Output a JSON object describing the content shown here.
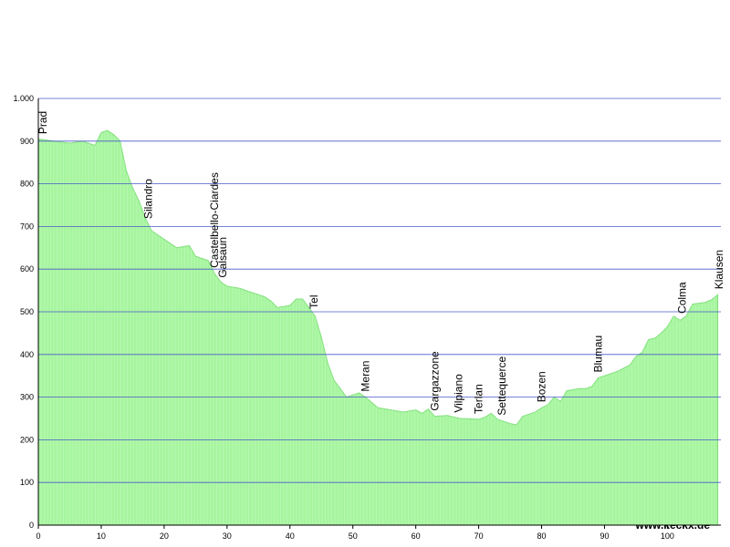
{
  "chart_data": {
    "type": "area",
    "x": [
      0,
      5,
      7,
      9,
      10,
      11,
      12,
      13,
      14,
      15,
      16,
      17,
      18,
      20,
      22,
      24,
      25,
      27,
      28,
      29,
      30,
      32,
      34,
      36,
      37,
      38,
      40,
      41,
      42,
      43,
      44,
      45,
      46,
      47,
      48,
      49,
      51,
      52,
      54,
      56,
      58,
      60,
      61,
      62,
      63,
      65,
      67,
      70,
      71,
      72,
      73,
      75,
      76,
      77,
      79,
      80,
      81,
      82,
      83,
      84,
      86,
      87,
      88,
      89,
      90,
      92,
      94,
      95,
      96,
      97,
      98,
      99,
      100,
      101,
      102,
      103,
      104,
      106,
      107,
      108
    ],
    "values": [
      905,
      895,
      900,
      890,
      920,
      925,
      915,
      900,
      830,
      790,
      760,
      720,
      690,
      670,
      650,
      655,
      630,
      620,
      590,
      570,
      560,
      555,
      545,
      535,
      525,
      510,
      515,
      530,
      530,
      510,
      490,
      440,
      380,
      340,
      320,
      300,
      310,
      300,
      275,
      270,
      265,
      270,
      262,
      272,
      255,
      257,
      250,
      248,
      253,
      262,
      248,
      238,
      235,
      255,
      265,
      275,
      282,
      300,
      290,
      315,
      320,
      320,
      325,
      345,
      350,
      360,
      375,
      395,
      405,
      435,
      438,
      450,
      465,
      490,
      480,
      490,
      518,
      522,
      528,
      540
    ],
    "color": "#a6f59e",
    "xlim": [
      0,
      108.5
    ],
    "ylim": [
      0,
      1000
    ],
    "xticks": [
      0,
      10,
      20,
      30,
      40,
      50,
      60,
      70,
      80,
      90,
      100
    ],
    "yticks": [
      0,
      100,
      200,
      300,
      400,
      500,
      600,
      700,
      800,
      900,
      {
        "value": 1000,
        "label": "1.000"
      }
    ],
    "grid": true,
    "annotations": [
      {
        "text": "Prad",
        "x": 0.7
      },
      {
        "text": "Silandro",
        "x": 17.5
      },
      {
        "text": "Castelbello-Ciardes",
        "x": 28
      },
      {
        "text": "Galsaun",
        "x": 29.3
      },
      {
        "text": "Tel",
        "x": 43.8
      },
      {
        "text": "Meran",
        "x": 52
      },
      {
        "text": "Gargazzone",
        "x": 63
      },
      {
        "text": "Vilpiano",
        "x": 66.8
      },
      {
        "text": "Terlan",
        "x": 70
      },
      {
        "text": "Settequerce",
        "x": 73.7
      },
      {
        "text": "Bozen",
        "x": 80
      },
      {
        "text": "Blumau",
        "x": 89
      },
      {
        "text": "Colma",
        "x": 102.3
      },
      {
        "text": "Klausen",
        "x": 108.2
      }
    ],
    "credit": "www.keckx.de"
  }
}
